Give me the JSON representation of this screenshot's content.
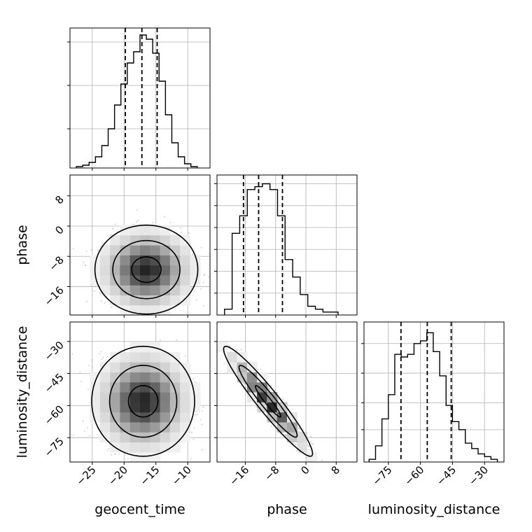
{
  "chart_data": {
    "type": "corner",
    "grid": true,
    "parameters": [
      {
        "name": "geocent_time",
        "label": "geocent_time",
        "range": [
          -28.5,
          -6.5
        ],
        "ticks": [
          -25,
          -20,
          -15,
          -10
        ],
        "tick_labels": [
          "−25",
          "−20",
          "−15",
          "−10"
        ]
      },
      {
        "name": "phase",
        "label": "phase",
        "range": [
          -23.5,
          13.5
        ],
        "ticks": [
          -16,
          -8,
          0,
          8
        ],
        "tick_labels": [
          "−16",
          "−8",
          "0",
          "8"
        ]
      },
      {
        "name": "luminosity_distance",
        "label": "luminosity_distance",
        "range": [
          -86.4,
          -20.9
        ],
        "ticks": [
          -75,
          -60,
          -45,
          -30
        ],
        "tick_labels": [
          "−75",
          "−60",
          "−45",
          "−30"
        ]
      }
    ],
    "histograms": [
      {
        "parameter": "geocent_time",
        "bin_edges": [
          -27.5,
          -26.5,
          -25.5,
          -24.5,
          -23.5,
          -22.5,
          -21.5,
          -20.5,
          -19.5,
          -18.5,
          -17.5,
          -16.5,
          -15.5,
          -14.5,
          -13.5,
          -12.5,
          -11.5,
          -10.5,
          -9.5,
          -8.5
        ],
        "counts": [
          1,
          2,
          4,
          8,
          16,
          28,
          45,
          60,
          75,
          83,
          95,
          92,
          82,
          62,
          38,
          18,
          8,
          3,
          1
        ],
        "quantiles": [
          -19.8,
          -17.2,
          -14.8
        ],
        "ylim": [
          0,
          100
        ],
        "yticks": [
          28,
          59,
          90
        ]
      },
      {
        "parameter": "phase",
        "bin_edges": [
          -21.5,
          -19.5,
          -17.5,
          -15.5,
          -13.5,
          -11.5,
          -9.5,
          -7.5,
          -5.5,
          -3.5,
          -1.5,
          0.5,
          2.5,
          4.5,
          6.5,
          8.5
        ],
        "counts": [
          2,
          28,
          34,
          43,
          44,
          45,
          43,
          34,
          19,
          13,
          7,
          3,
          2,
          1,
          1
        ],
        "quantiles": [
          -16.5,
          -12.5,
          -6.2
        ],
        "ylim": [
          0,
          48
        ],
        "yticks": [
          7.5,
          15,
          22.5,
          30,
          37.5,
          45
        ]
      },
      {
        "parameter": "luminosity_distance",
        "bin_edges": [
          -84,
          -81,
          -78,
          -75,
          -72,
          -69,
          -66,
          -63,
          -60,
          -57,
          -54,
          -51,
          -48,
          -45,
          -42,
          -39,
          -36,
          -33,
          -30,
          -27,
          -24
        ],
        "counts": [
          1,
          6,
          16,
          25,
          40,
          39,
          40,
          44,
          45,
          48,
          41,
          32,
          21,
          15,
          12,
          7,
          5,
          3,
          2,
          1
        ],
        "quantiles": [
          -69.1,
          -56.8,
          -45.6
        ],
        "ylim": [
          0,
          52
        ],
        "yticks": [
          12,
          22,
          33,
          44
        ]
      }
    ],
    "pairs": [
      {
        "x": "geocent_time",
        "y": "phase",
        "mean": [
          -16.5,
          -11.5
        ],
        "sd": [
          3.3,
          4.8
        ],
        "corr": 0
      },
      {
        "x": "geocent_time",
        "y": "luminosity_distance",
        "mean": [
          -17.0,
          -58.0
        ],
        "sd": [
          3.3,
          10.5
        ],
        "corr": 0
      },
      {
        "x": "phase",
        "y": "luminosity_distance",
        "mean": [
          -10.0,
          -58.0
        ],
        "sd": [
          4.8,
          10.5
        ],
        "corr": -0.95
      }
    ]
  }
}
